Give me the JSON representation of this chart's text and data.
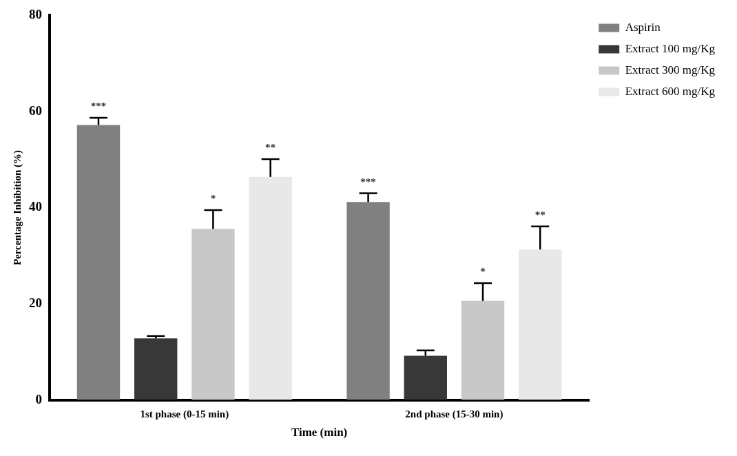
{
  "chart_data": {
    "type": "bar",
    "xlabel": "Time (min)",
    "ylabel": "Percentage Inhibition (%)",
    "categories": [
      "1st phase (0-15 min)",
      "2nd phase (15-30 min)"
    ],
    "series": [
      {
        "name": "Aspirin",
        "color": "#808080",
        "values": [
          57.2,
          41.2
        ],
        "errors": [
          [
            57.2,
            58.7
          ],
          [
            41.2,
            43.0
          ]
        ],
        "value_labels": [
          "***",
          "***"
        ]
      },
      {
        "name": "Extract 100 mg/Kg",
        "color": "#383838",
        "values": [
          12.8,
          9.2
        ],
        "errors": [
          [
            12.8,
            13.3
          ],
          [
            9.2,
            10.3
          ]
        ],
        "value_labels": [
          null,
          null
        ]
      },
      {
        "name": "Extract 300 mg/Kg",
        "color": "#c8c8c8",
        "values": [
          35.6,
          20.6
        ],
        "errors": [
          [
            35.6,
            39.5
          ],
          [
            20.6,
            24.3
          ]
        ],
        "value_labels": [
          "*",
          "*"
        ]
      },
      {
        "name": "Extract 600 mg/Kg",
        "color": "#e8e8e8",
        "values": [
          46.4,
          31.3
        ],
        "errors": [
          [
            46.4,
            50.1
          ],
          [
            31.3,
            36.1
          ]
        ],
        "value_labels": [
          "**",
          "**"
        ]
      }
    ],
    "ylim": [
      0,
      80
    ],
    "yticks": [
      0,
      20,
      40,
      60,
      80
    ],
    "grid": false,
    "legend": "top right"
  }
}
